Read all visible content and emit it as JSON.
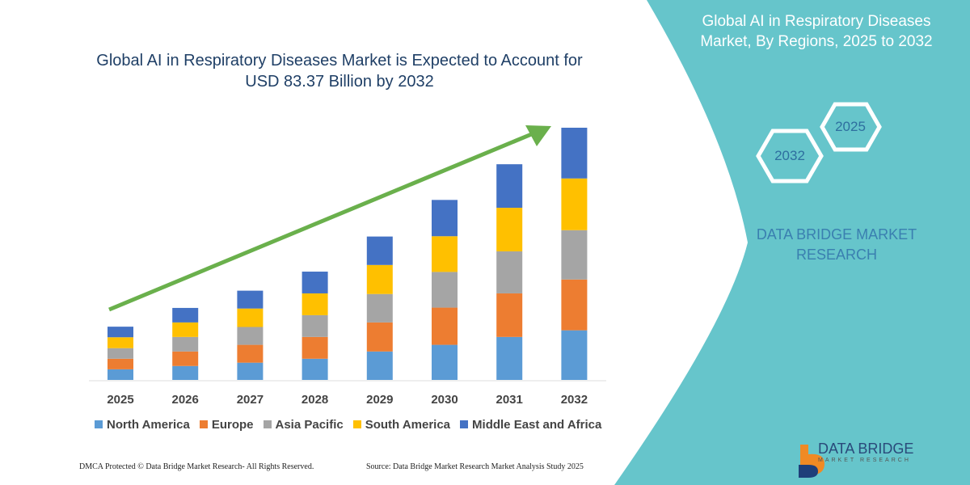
{
  "header": {
    "title": "Global AI in Respiratory Diseases Market is Expected to Account for USD 83.37 Billion by 2032"
  },
  "side": {
    "title": "Global AI in Respiratory Diseases Market, By Regions, 2025 to 2032",
    "hex_start": "2025",
    "hex_end": "2032",
    "brand": "DATA BRIDGE MARKET RESEARCH",
    "logo_name": "DATA BRIDGE",
    "logo_sub": "MARKET RESEARCH"
  },
  "footer": {
    "left": "DMCA Protected © Data Bridge Market Research-  All Rights Reserved.",
    "right": "Source: Data Bridge Market Research  Market Analysis Study 2025"
  },
  "colors": {
    "teal": "#66c5cb",
    "arrow": "#6ab04c"
  },
  "chart_data": {
    "type": "bar",
    "stacked": true,
    "title": "Global AI in Respiratory Diseases Market is Expected to Account for USD 83.37 Billion by 2032",
    "categories": [
      "2025",
      "2026",
      "2027",
      "2028",
      "2029",
      "2030",
      "2031",
      "2032"
    ],
    "legend_position": "bottom",
    "grid": false,
    "trend_arrow": true,
    "series": [
      {
        "name": "North America",
        "color": "#5b9bd5",
        "values": [
          3.5,
          4.6,
          5.7,
          7.0,
          9.4,
          11.6,
          14.2,
          16.4
        ]
      },
      {
        "name": "Europe",
        "color": "#ed7d31",
        "values": [
          3.5,
          4.8,
          5.9,
          7.2,
          9.6,
          12.3,
          14.4,
          16.8
        ]
      },
      {
        "name": "Asia Pacific",
        "color": "#a5a5a5",
        "values": [
          3.5,
          4.8,
          5.9,
          7.2,
          9.4,
          11.8,
          13.9,
          16.3
        ]
      },
      {
        "name": "South America",
        "color": "#ffc000",
        "values": [
          3.6,
          4.8,
          6.1,
          7.2,
          9.6,
          11.8,
          14.4,
          17.1
        ]
      },
      {
        "name": "Middle East and Africa",
        "color": "#4472c4",
        "values": [
          3.5,
          4.8,
          5.9,
          7.2,
          9.4,
          12.0,
          14.4,
          16.77
        ]
      }
    ]
  }
}
